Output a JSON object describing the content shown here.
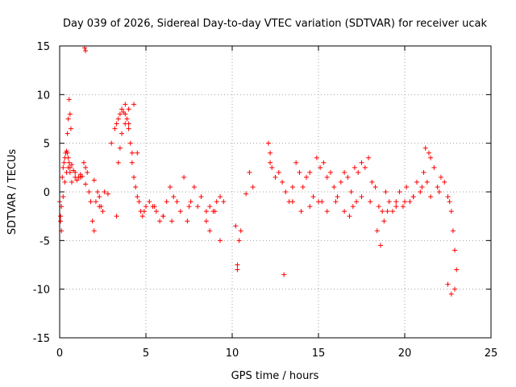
{
  "chart_data": {
    "type": "scatter",
    "title": "Day 039 of 2026, Sidereal Day-to-day VTEC variation (SDTVAR) for receiver ucak",
    "xlabel": "GPS time / hours",
    "ylabel": "SDTVAR / TECUs",
    "xlim": [
      0,
      25
    ],
    "ylim": [
      -15,
      15
    ],
    "xticks": [
      "0",
      "5",
      "10",
      "15",
      "20",
      "25"
    ],
    "yticks": [
      "-15",
      "-10",
      "-5",
      "0",
      "5",
      "10",
      "15"
    ],
    "grid": true,
    "marker": "plus",
    "marker_color": "#ff0000",
    "series": [
      {
        "name": "SDTVAR",
        "x": [
          0.0,
          0.05,
          0.1,
          0.15,
          0.2,
          0.25,
          0.3,
          0.35,
          0.4,
          0.45,
          0.5,
          0.55,
          0.6,
          0.7,
          0.8,
          0.9,
          1.0,
          1.1,
          1.2,
          1.3,
          1.4,
          1.5,
          1.6,
          1.7,
          1.8,
          1.9,
          2.0,
          2.1,
          2.2,
          2.3,
          2.4,
          2.5,
          2.6,
          2.8,
          3.0,
          3.2,
          3.3,
          3.4,
          3.5,
          3.6,
          3.7,
          3.8,
          3.9,
          4.0,
          4.1,
          4.2,
          4.3,
          4.4,
          4.5,
          4.6,
          4.7,
          4.8,
          4.9,
          5.0,
          5.2,
          5.4,
          5.6,
          5.8,
          6.0,
          6.2,
          6.4,
          6.6,
          6.8,
          7.0,
          7.2,
          7.4,
          7.6,
          7.8,
          8.0,
          8.2,
          8.5,
          8.7,
          8.9,
          9.1,
          9.3,
          9.5,
          10.3,
          10.4,
          10.5,
          10.8,
          11.0,
          11.2,
          12.1,
          12.2,
          12.3,
          12.5,
          12.7,
          12.9,
          13.1,
          13.3,
          13.5,
          13.7,
          13.9,
          14.1,
          14.3,
          14.5,
          14.7,
          14.9,
          15.1,
          15.3,
          15.5,
          15.7,
          15.9,
          16.1,
          16.3,
          16.5,
          16.7,
          16.9,
          17.1,
          17.3,
          17.5,
          17.7,
          17.9,
          18.1,
          18.3,
          18.5,
          18.7,
          18.9,
          19.1,
          19.3,
          19.5,
          19.7,
          19.9,
          20.1,
          20.3,
          20.5,
          20.7,
          20.9,
          21.1,
          21.3,
          21.5,
          21.7,
          21.9,
          22.1,
          22.3,
          22.5,
          22.6,
          22.7,
          22.8,
          22.9,
          23.0,
          0.05,
          0.1,
          0.2,
          0.3,
          0.4,
          0.5,
          0.6,
          0.7,
          0.9,
          1.2,
          1.5,
          2.0,
          2.3,
          3.3,
          3.5,
          3.8,
          4.0,
          4.3,
          4.5,
          5.5,
          6.0,
          6.5,
          7.5,
          8.5,
          8.7,
          9.0,
          9.3,
          10.2,
          10.3,
          13.0,
          13.5,
          14.0,
          14.5,
          15.0,
          15.5,
          16.0,
          16.5,
          17.0,
          17.5,
          18.0,
          18.4,
          18.6,
          18.8,
          19.0,
          19.5,
          20.0,
          20.5,
          21.0,
          21.5,
          22.0,
          22.5,
          22.7,
          22.9,
          1.45,
          1.5,
          0.45,
          0.5,
          0.55,
          0.6,
          0.65,
          3.4,
          3.6,
          3.8,
          4.0,
          4.2,
          12.2,
          15.2,
          16.8,
          17.2,
          21.2,
          21.4
        ],
        "y": [
          -1.0,
          -3.0,
          -1.5,
          1.5,
          2.5,
          3.0,
          3.5,
          4.0,
          4.2,
          4.0,
          3.5,
          3.0,
          2.5,
          2.8,
          2.2,
          1.5,
          1.2,
          1.5,
          1.8,
          1.6,
          3.0,
          2.5,
          2.0,
          0.0,
          -1.0,
          -3.0,
          -4.0,
          -1.0,
          0.0,
          -0.5,
          -1.5,
          -2.0,
          0.0,
          -0.2,
          5.0,
          6.5,
          7.0,
          7.5,
          8.0,
          8.5,
          8.2,
          8.0,
          7.5,
          7.0,
          5.0,
          3.0,
          1.5,
          0.5,
          -0.5,
          -1.0,
          -2.0,
          -2.5,
          -2.0,
          -1.5,
          -1.0,
          -1.5,
          -2.0,
          -3.0,
          -2.5,
          -1.0,
          0.5,
          -0.5,
          -1.0,
          -2.0,
          1.5,
          -3.0,
          -1.0,
          0.5,
          -1.5,
          -0.5,
          -3.0,
          -4.0,
          -2.0,
          -1.0,
          -0.5,
          -1.0,
          -7.5,
          -5.0,
          -4.0,
          -0.2,
          2.0,
          0.5,
          5.0,
          4.0,
          2.5,
          1.5,
          2.0,
          1.0,
          0.0,
          -1.0,
          0.5,
          3.0,
          2.0,
          0.5,
          1.5,
          2.0,
          -0.5,
          3.5,
          2.5,
          3.0,
          1.5,
          2.0,
          0.5,
          -0.5,
          1.0,
          2.0,
          1.5,
          0.0,
          2.5,
          2.0,
          3.0,
          2.5,
          3.5,
          1.0,
          0.5,
          -1.5,
          -2.0,
          0.0,
          -1.0,
          -2.0,
          -1.0,
          0.0,
          -1.5,
          0.5,
          -1.0,
          -0.5,
          1.0,
          0.0,
          2.0,
          1.0,
          3.5,
          2.5,
          0.5,
          1.5,
          1.0,
          -0.5,
          -1.0,
          -2.0,
          -4.0,
          -6.0,
          -8.0,
          -2.5,
          -4.0,
          -0.5,
          1.0,
          2.0,
          2.5,
          2.0,
          1.0,
          2.0,
          1.5,
          0.8,
          1.2,
          -1.5,
          -2.5,
          4.5,
          9.0,
          8.5,
          9.0,
          4.0,
          -1.5,
          -2.5,
          -3.0,
          -1.5,
          -2.0,
          -1.5,
          -2.0,
          -5.0,
          -3.5,
          -8.0,
          -8.5,
          -1.0,
          -2.0,
          -1.5,
          -1.0,
          -2.0,
          -1.0,
          -2.0,
          -1.5,
          -0.5,
          -1.0,
          -4.0,
          -5.5,
          -3.0,
          -2.0,
          -1.5,
          -1.0,
          -0.5,
          0.5,
          -0.5,
          0.0,
          -9.5,
          -10.5,
          -10.0,
          14.8,
          14.5,
          6.0,
          7.5,
          9.5,
          8.0,
          6.5,
          3.0,
          6.0,
          7.0,
          6.5,
          4.0,
          3.0,
          -1.0,
          -2.5,
          -1.0,
          4.5,
          4.0
        ]
      }
    ]
  }
}
